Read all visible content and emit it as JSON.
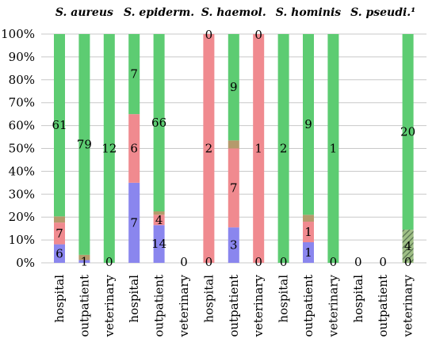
{
  "colors": {
    "pink": "#f08a8f",
    "green": "#5dcc72",
    "blue": "#8a86ee",
    "olive": "#b59a6c",
    "hatched": "#6f8f64",
    "grid": "#c8c8c8"
  },
  "chart_data": {
    "type": "bar",
    "stacked": true,
    "percent": true,
    "ylim": [
      0,
      100
    ],
    "y_ticks": [
      "0%",
      "10%",
      "20%",
      "30%",
      "40%",
      "50%",
      "60%",
      "70%",
      "80%",
      "90%",
      "100%"
    ],
    "groups": [
      "S. aureus",
      "S. epiderm.",
      "S. haemol.",
      "S. hominis",
      "S. pseudi.¹"
    ],
    "categories": [
      "hospital",
      "outpatient",
      "veterinary"
    ],
    "bars": [
      {
        "group": "S. aureus",
        "category": "hospital",
        "segments": [
          {
            "color": "blue",
            "value": 8.1,
            "label": "6"
          },
          {
            "color": "pink",
            "value": 9.5,
            "label": "7"
          },
          {
            "color": "olive",
            "value": 2.7,
            "label": ""
          },
          {
            "color": "green",
            "value": 79.7,
            "label": "61"
          }
        ]
      },
      {
        "group": "S. aureus",
        "category": "outpatient",
        "segments": [
          {
            "color": "blue",
            "value": 1.2,
            "label": "1"
          },
          {
            "color": "olive",
            "value": 2.3,
            "label": ""
          },
          {
            "color": "green",
            "value": 96.5,
            "label": "79"
          }
        ]
      },
      {
        "group": "S. aureus",
        "category": "veterinary",
        "segments": [
          {
            "color": "green",
            "value": 100,
            "label": "12"
          }
        ],
        "bottom_label": "0"
      },
      {
        "group": "S. epiderm.",
        "category": "hospital",
        "segments": [
          {
            "color": "blue",
            "value": 35,
            "label": "7"
          },
          {
            "color": "pink",
            "value": 30,
            "label": "6"
          },
          {
            "color": "green",
            "value": 35,
            "label": "7"
          }
        ]
      },
      {
        "group": "S. epiderm.",
        "category": "outpatient",
        "segments": [
          {
            "color": "blue",
            "value": 16.5,
            "label": "14"
          },
          {
            "color": "pink",
            "value": 4.5,
            "label": "4"
          },
          {
            "color": "olive",
            "value": 1.5,
            "label": ""
          },
          {
            "color": "green",
            "value": 77.5,
            "label": "66"
          }
        ]
      },
      {
        "group": "S. epiderm.",
        "category": "veterinary",
        "segments": [],
        "bottom_label": "0"
      },
      {
        "group": "S. haemol.",
        "category": "hospital",
        "segments": [
          {
            "color": "pink",
            "value": 100,
            "label": "2"
          }
        ],
        "bottom_label": "0",
        "top_label": "0"
      },
      {
        "group": "S. haemol.",
        "category": "outpatient",
        "segments": [
          {
            "color": "blue",
            "value": 15.5,
            "label": "3"
          },
          {
            "color": "pink",
            "value": 34.5,
            "label": "7"
          },
          {
            "color": "olive",
            "value": 3.5,
            "label": ""
          },
          {
            "color": "green",
            "value": 46.5,
            "label": "9"
          }
        ]
      },
      {
        "group": "S. haemol.",
        "category": "veterinary",
        "segments": [
          {
            "color": "pink",
            "value": 100,
            "label": "1"
          }
        ],
        "bottom_label": "0",
        "top_label": "0"
      },
      {
        "group": "S. hominis",
        "category": "hospital",
        "segments": [
          {
            "color": "green",
            "value": 100,
            "label": "2"
          }
        ],
        "bottom_label": "0"
      },
      {
        "group": "S. hominis",
        "category": "outpatient",
        "segments": [
          {
            "color": "blue",
            "value": 9,
            "label": "1"
          },
          {
            "color": "pink",
            "value": 9,
            "label": "1"
          },
          {
            "color": "olive",
            "value": 3,
            "label": ""
          },
          {
            "color": "green",
            "value": 79,
            "label": "9"
          }
        ]
      },
      {
        "group": "S. hominis",
        "category": "veterinary",
        "segments": [
          {
            "color": "green",
            "value": 100,
            "label": "1"
          }
        ],
        "bottom_label": "0"
      },
      {
        "group": "S. pseudi.¹",
        "category": "hospital",
        "segments": [],
        "bottom_label": "0"
      },
      {
        "group": "S. pseudi.¹",
        "category": "outpatient",
        "segments": [],
        "bottom_label": "0"
      },
      {
        "group": "S. pseudi.¹",
        "category": "veterinary",
        "segments": [
          {
            "color": "hatched",
            "value": 14.5,
            "label": "4"
          },
          {
            "color": "green",
            "value": 85.5,
            "label": "20"
          }
        ],
        "bottom_label": "0"
      }
    ]
  }
}
